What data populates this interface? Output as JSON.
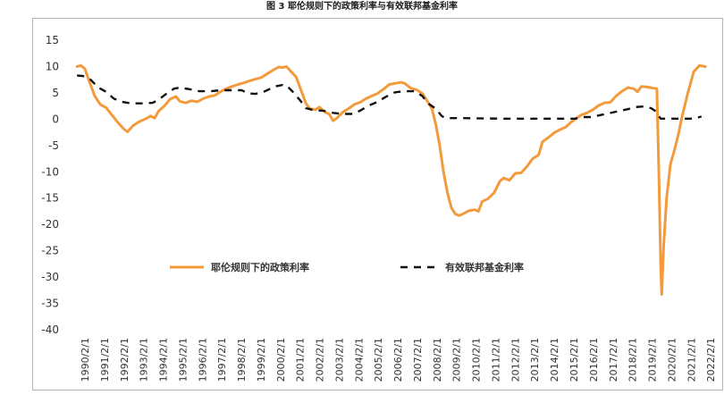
{
  "title": "图 3  耶伦规则下的政策利率与有效联邦基金利率",
  "chart_data": {
    "type": "line",
    "title": "图 3  耶伦规则下的政策利率与有效联邦基金利率",
    "xlabel": "",
    "ylabel": "",
    "ylim": [
      -40,
      15
    ],
    "yticks": [
      15,
      10,
      5,
      0,
      -5,
      -10,
      -15,
      -20,
      -25,
      -30,
      -35,
      -40
    ],
    "xlim": [
      1990.0,
      2023.0
    ],
    "x_tick_labels": [
      "1990/2/1",
      "1991/2/1",
      "1992/2/1",
      "1993/2/1",
      "1994/2/1",
      "1995/2/1",
      "1996/2/1",
      "1997/2/1",
      "1998/2/1",
      "1999/2/1",
      "2000/2/1",
      "2001/2/1",
      "2002/2/1",
      "2003/2/1",
      "2004/2/1",
      "2005/2/1",
      "2006/2/1",
      "2007/2/1",
      "2008/2/1",
      "2009/2/1",
      "2010/2/1",
      "2011/2/1",
      "2012/2/1",
      "2013/2/1",
      "2014/2/1",
      "2015/2/1",
      "2016/2/1",
      "2017/2/1",
      "2018/2/1",
      "2019/2/1",
      "2020/2/1",
      "2021/2/1",
      "2022/2/1"
    ],
    "legend_position": "inside-lower-center",
    "grid": false,
    "series": [
      {
        "name": "耶伦规则下的政策利率",
        "color": "#F39B3C",
        "style": "solid",
        "points": [
          [
            1990.1,
            10.0
          ],
          [
            1990.3,
            10.2
          ],
          [
            1990.5,
            9.6
          ],
          [
            1990.8,
            6.5
          ],
          [
            1991.0,
            4.5
          ],
          [
            1991.3,
            2.8
          ],
          [
            1991.6,
            2.2
          ],
          [
            1991.9,
            0.8
          ],
          [
            1992.2,
            -0.6
          ],
          [
            1992.5,
            -1.8
          ],
          [
            1992.7,
            -2.4
          ],
          [
            1993.0,
            -1.2
          ],
          [
            1993.3,
            -0.5
          ],
          [
            1993.6,
            0.0
          ],
          [
            1993.9,
            0.6
          ],
          [
            1994.1,
            0.2
          ],
          [
            1994.3,
            1.5
          ],
          [
            1994.6,
            2.5
          ],
          [
            1994.9,
            3.8
          ],
          [
            1995.2,
            4.3
          ],
          [
            1995.4,
            3.4
          ],
          [
            1995.7,
            3.1
          ],
          [
            1996.0,
            3.5
          ],
          [
            1996.3,
            3.3
          ],
          [
            1996.6,
            3.9
          ],
          [
            1996.9,
            4.3
          ],
          [
            1997.2,
            4.5
          ],
          [
            1997.5,
            5.2
          ],
          [
            1997.8,
            5.8
          ],
          [
            1998.1,
            6.2
          ],
          [
            1998.4,
            6.6
          ],
          [
            1998.7,
            6.9
          ],
          [
            1999.0,
            7.3
          ],
          [
            1999.3,
            7.6
          ],
          [
            1999.6,
            7.9
          ],
          [
            1999.9,
            8.6
          ],
          [
            2000.2,
            9.3
          ],
          [
            2000.5,
            9.9
          ],
          [
            2000.7,
            9.8
          ],
          [
            2000.9,
            10.0
          ],
          [
            2001.1,
            9.2
          ],
          [
            2001.4,
            8.0
          ],
          [
            2001.7,
            5.0
          ],
          [
            2001.9,
            3.0
          ],
          [
            2002.1,
            2.0
          ],
          [
            2002.4,
            1.8
          ],
          [
            2002.6,
            2.3
          ],
          [
            2002.9,
            1.3
          ],
          [
            2003.1,
            1.0
          ],
          [
            2003.3,
            -0.3
          ],
          [
            2003.5,
            0.2
          ],
          [
            2003.8,
            1.3
          ],
          [
            2004.1,
            2.0
          ],
          [
            2004.4,
            2.8
          ],
          [
            2004.7,
            3.2
          ],
          [
            2005.0,
            3.9
          ],
          [
            2005.3,
            4.4
          ],
          [
            2005.6,
            4.9
          ],
          [
            2005.9,
            5.7
          ],
          [
            2006.2,
            6.6
          ],
          [
            2006.5,
            6.8
          ],
          [
            2006.8,
            7.0
          ],
          [
            2007.0,
            6.8
          ],
          [
            2007.3,
            5.9
          ],
          [
            2007.6,
            5.6
          ],
          [
            2007.9,
            4.9
          ],
          [
            2008.1,
            3.8
          ],
          [
            2008.4,
            2.0
          ],
          [
            2008.6,
            -1.0
          ],
          [
            2008.8,
            -5.0
          ],
          [
            2009.0,
            -10.0
          ],
          [
            2009.2,
            -14.0
          ],
          [
            2009.4,
            -16.8
          ],
          [
            2009.6,
            -18.0
          ],
          [
            2009.8,
            -18.3
          ],
          [
            2010.0,
            -18.0
          ],
          [
            2010.3,
            -17.4
          ],
          [
            2010.6,
            -17.2
          ],
          [
            2010.8,
            -17.5
          ],
          [
            2011.0,
            -15.6
          ],
          [
            2011.3,
            -15.1
          ],
          [
            2011.6,
            -14.0
          ],
          [
            2011.9,
            -11.8
          ],
          [
            2012.1,
            -11.2
          ],
          [
            2012.4,
            -11.6
          ],
          [
            2012.7,
            -10.3
          ],
          [
            2013.0,
            -10.2
          ],
          [
            2013.3,
            -9.0
          ],
          [
            2013.6,
            -7.5
          ],
          [
            2013.9,
            -6.8
          ],
          [
            2014.1,
            -4.3
          ],
          [
            2014.4,
            -3.5
          ],
          [
            2014.7,
            -2.6
          ],
          [
            2015.0,
            -2.0
          ],
          [
            2015.3,
            -1.5
          ],
          [
            2015.6,
            -0.5
          ],
          [
            2015.9,
            0.3
          ],
          [
            2016.1,
            0.8
          ],
          [
            2016.4,
            1.2
          ],
          [
            2016.7,
            1.8
          ],
          [
            2017.0,
            2.6
          ],
          [
            2017.3,
            3.1
          ],
          [
            2017.6,
            3.2
          ],
          [
            2017.9,
            4.4
          ],
          [
            2018.2,
            5.3
          ],
          [
            2018.5,
            6.0
          ],
          [
            2018.8,
            5.8
          ],
          [
            2019.0,
            5.2
          ],
          [
            2019.2,
            6.2
          ],
          [
            2019.5,
            6.1
          ],
          [
            2019.8,
            5.9
          ],
          [
            2020.0,
            5.8
          ],
          [
            2020.1,
            -10.0
          ],
          [
            2020.2,
            -28.0
          ],
          [
            2020.25,
            -33.3
          ],
          [
            2020.35,
            -24.0
          ],
          [
            2020.5,
            -15.0
          ],
          [
            2020.7,
            -8.5
          ],
          [
            2020.9,
            -6.0
          ],
          [
            2021.1,
            -3.0
          ],
          [
            2021.3,
            0.5
          ],
          [
            2021.6,
            5.0
          ],
          [
            2021.9,
            9.0
          ],
          [
            2022.2,
            10.2
          ],
          [
            2022.5,
            10.0
          ]
        ]
      },
      {
        "name": "有效联邦基金利率",
        "color": "#111111",
        "style": "dashed",
        "points": [
          [
            1990.1,
            8.3
          ],
          [
            1990.4,
            8.2
          ],
          [
            1990.8,
            7.5
          ],
          [
            1991.2,
            6.0
          ],
          [
            1991.6,
            5.2
          ],
          [
            1992.0,
            3.9
          ],
          [
            1992.4,
            3.3
          ],
          [
            1992.9,
            3.0
          ],
          [
            1993.5,
            3.0
          ],
          [
            1994.0,
            3.1
          ],
          [
            1994.3,
            3.7
          ],
          [
            1994.7,
            4.8
          ],
          [
            1995.1,
            5.8
          ],
          [
            1995.4,
            6.0
          ],
          [
            1995.9,
            5.7
          ],
          [
            1996.4,
            5.3
          ],
          [
            1997.0,
            5.3
          ],
          [
            1997.5,
            5.5
          ],
          [
            1998.0,
            5.5
          ],
          [
            1998.6,
            5.5
          ],
          [
            1998.9,
            4.9
          ],
          [
            1999.3,
            4.8
          ],
          [
            1999.8,
            5.3
          ],
          [
            2000.3,
            6.2
          ],
          [
            2000.7,
            6.5
          ],
          [
            2000.9,
            6.4
          ],
          [
            2001.2,
            5.3
          ],
          [
            2001.6,
            3.6
          ],
          [
            2001.9,
            2.1
          ],
          [
            2002.3,
            1.7
          ],
          [
            2002.8,
            1.6
          ],
          [
            2003.3,
            1.2
          ],
          [
            2003.8,
            1.0
          ],
          [
            2004.3,
            1.0
          ],
          [
            2004.7,
            1.6
          ],
          [
            2005.1,
            2.5
          ],
          [
            2005.6,
            3.3
          ],
          [
            2006.0,
            4.2
          ],
          [
            2006.5,
            5.1
          ],
          [
            2007.0,
            5.3
          ],
          [
            2007.5,
            5.3
          ],
          [
            2007.9,
            4.4
          ],
          [
            2008.2,
            3.0
          ],
          [
            2008.6,
            2.0
          ],
          [
            2008.9,
            0.6
          ],
          [
            2009.1,
            0.2
          ],
          [
            2010.0,
            0.2
          ],
          [
            2012.0,
            0.1
          ],
          [
            2014.0,
            0.1
          ],
          [
            2015.8,
            0.1
          ],
          [
            2016.1,
            0.4
          ],
          [
            2016.6,
            0.4
          ],
          [
            2017.0,
            0.7
          ],
          [
            2017.5,
            1.1
          ],
          [
            2018.0,
            1.5
          ],
          [
            2018.5,
            1.9
          ],
          [
            2018.9,
            2.3
          ],
          [
            2019.3,
            2.4
          ],
          [
            2019.7,
            2.1
          ],
          [
            2019.9,
            1.6
          ],
          [
            2020.2,
            0.1
          ],
          [
            2021.0,
            0.1
          ],
          [
            2021.9,
            0.1
          ],
          [
            2022.1,
            0.3
          ],
          [
            2022.3,
            0.5
          ]
        ]
      }
    ]
  }
}
